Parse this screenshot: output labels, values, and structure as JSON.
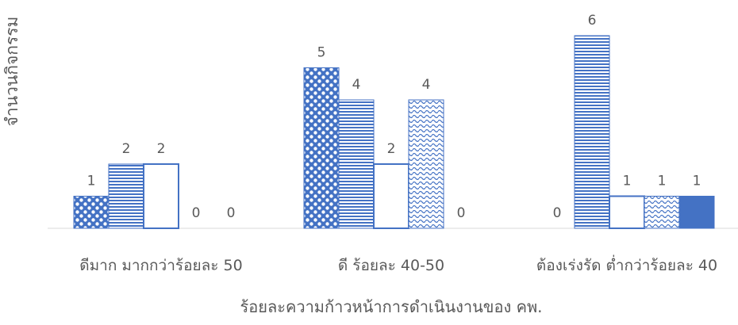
{
  "chart_data": {
    "type": "bar",
    "xlabel": "ร้อยละความก้าวหน้าการดำเนินงานของ คพ.",
    "ylabel": "จำนวนกิจกรรม",
    "categories": [
      "ดีมาก มากกว่าร้อยละ 50",
      "ดี ร้อยละ 40-50",
      "ต้องเร่งรัด ต่ำกว่าร้อยละ 40"
    ],
    "series": [
      {
        "pattern": "polka-dots",
        "values": [
          1,
          5,
          0
        ]
      },
      {
        "pattern": "horizontal-stripes",
        "values": [
          2,
          4,
          6
        ]
      },
      {
        "pattern": "outline",
        "values": [
          2,
          2,
          1
        ]
      },
      {
        "pattern": "waves",
        "values": [
          0,
          4,
          1
        ]
      },
      {
        "pattern": "solid",
        "values": [
          0,
          0,
          1
        ]
      }
    ],
    "ylim": [
      0,
      6.5
    ],
    "grid": false,
    "legend": "none",
    "colors": {
      "bar": "#4472C4",
      "label": "#595959",
      "axis": "#d9d9d9"
    }
  }
}
